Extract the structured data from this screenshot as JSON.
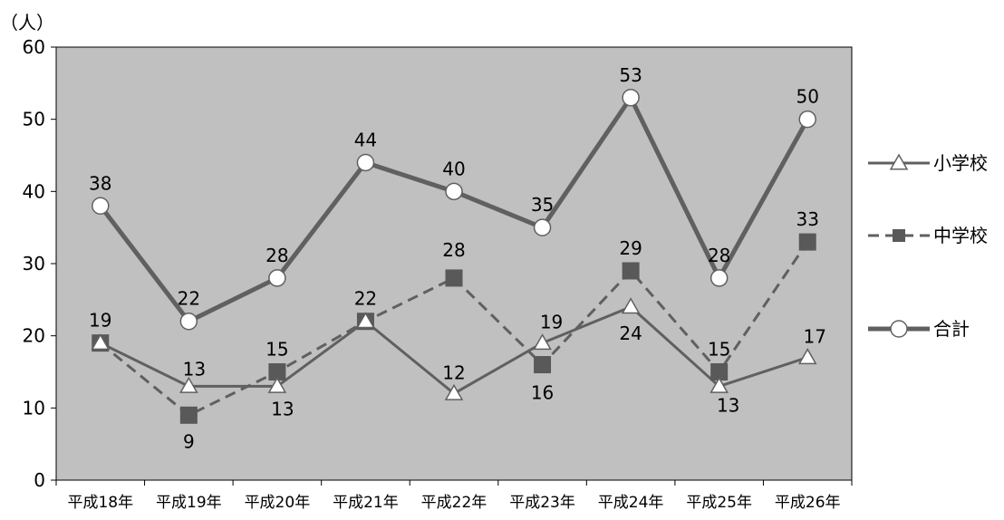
{
  "chart_data": {
    "type": "line",
    "title": "",
    "ylabel": "（人）",
    "xlabel": "",
    "ylim": [
      0,
      60
    ],
    "yticks": [
      0,
      10,
      20,
      30,
      40,
      50,
      60
    ],
    "grid": false,
    "legend_position": "right",
    "plot_background": "#c0c0c0",
    "categories": [
      "平成18年",
      "平成19年",
      "平成20年",
      "平成21年",
      "平成22年",
      "平成23年",
      "平成24年",
      "平成25年",
      "平成26年"
    ],
    "series": [
      {
        "name": "小学校",
        "values": [
          19,
          13,
          13,
          22,
          12,
          19,
          24,
          13,
          17
        ],
        "marker": "triangle",
        "line_style": "solid",
        "color": "#606060"
      },
      {
        "name": "中学校",
        "values": [
          19,
          9,
          15,
          22,
          28,
          16,
          29,
          15,
          33
        ],
        "marker": "square",
        "line_style": "dashed",
        "color": "#606060"
      },
      {
        "name": "合計",
        "values": [
          38,
          22,
          28,
          44,
          40,
          35,
          53,
          28,
          50
        ],
        "marker": "circle",
        "line_style": "solid",
        "color": "#606060"
      }
    ],
    "data_labels": [
      {
        "text": "38"
      },
      {
        "text": "22"
      },
      {
        "text": "28"
      },
      {
        "text": "44"
      },
      {
        "text": "40"
      },
      {
        "text": "35"
      },
      {
        "text": "53"
      },
      {
        "text": "28"
      },
      {
        "text": "50"
      },
      {
        "text": "19"
      },
      {
        "text": "9"
      },
      {
        "text": "15"
      },
      {
        "text": "22"
      },
      {
        "text": "28"
      },
      {
        "text": "16"
      },
      {
        "text": "29"
      },
      {
        "text": "15"
      },
      {
        "text": "33"
      },
      {
        "text": "13"
      },
      {
        "text": "13"
      },
      {
        "text": "12"
      },
      {
        "text": "19"
      },
      {
        "text": "24"
      },
      {
        "text": "13"
      },
      {
        "text": "17"
      }
    ]
  }
}
